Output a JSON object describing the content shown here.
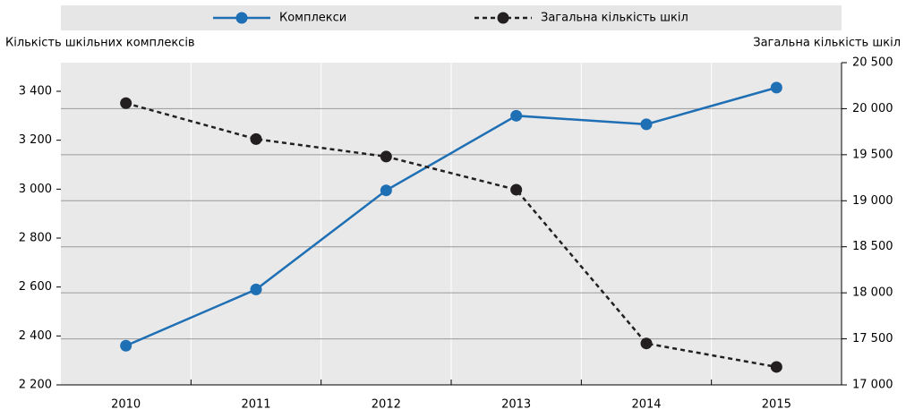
{
  "chart_data": {
    "type": "line",
    "left_axis_label": "Кількість шкільних комплексів",
    "right_axis_label": "Загальна кількість шкіл",
    "categories": [
      "2010",
      "2011",
      "2012",
      "2013",
      "2014",
      "2015"
    ],
    "series": [
      {
        "name": "Комплекси",
        "color": "#1f6fb4",
        "dashed": false,
        "values": [
          2360,
          2590,
          2995,
          3300,
          3265,
          3415
        ]
      },
      {
        "name": "Загальна кількість шкіл",
        "color": "#231f20",
        "dashed": true,
        "axis": "y2",
        "values": [
          20060,
          19670,
          19480,
          19120,
          17450,
          17195
        ]
      }
    ],
    "ylim": [
      2200,
      3517
    ],
    "yticks": [
      {
        "value": 2200,
        "label": "2 200"
      },
      {
        "value": 2400,
        "label": "2 400"
      },
      {
        "value": 2600,
        "label": "2 600"
      },
      {
        "value": 2800,
        "label": "2 800"
      },
      {
        "value": 3000,
        "label": "3 000"
      },
      {
        "value": 3200,
        "label": "3 200"
      },
      {
        "value": 3400,
        "label": "3 400"
      }
    ],
    "y2lim": [
      17000,
      20500
    ],
    "y2ticks": [
      {
        "value": 17000,
        "label": "17 000"
      },
      {
        "value": 17500,
        "label": "17 500"
      },
      {
        "value": 18000,
        "label": "18 000"
      },
      {
        "value": 18500,
        "label": "18 500"
      },
      {
        "value": 19000,
        "label": "19 000"
      },
      {
        "value": 19500,
        "label": "19 500"
      },
      {
        "value": 20000,
        "label": "20 000"
      },
      {
        "value": 20500,
        "label": "20 500"
      }
    ],
    "grid": true
  }
}
